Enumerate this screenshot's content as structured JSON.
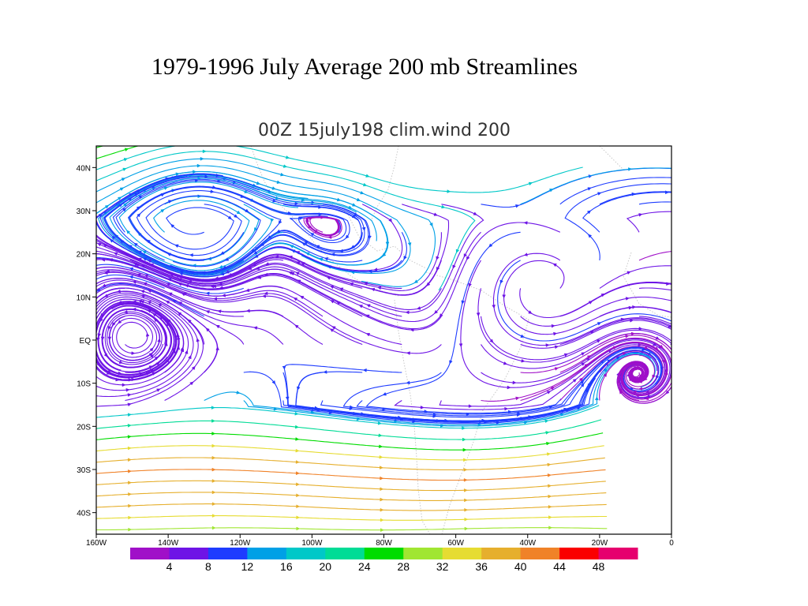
{
  "slide": {
    "title": "1979-1996 July Average 200 mb Streamlines"
  },
  "plot": {
    "title": "00Z 15july198 clim.wind 200",
    "lon_range": [
      -160,
      0
    ],
    "lat_range": [
      -45,
      45
    ],
    "lon_ticks": [
      {
        "value": -160,
        "label": "160W"
      },
      {
        "value": -140,
        "label": "140W"
      },
      {
        "value": -120,
        "label": "120W"
      },
      {
        "value": -100,
        "label": "100W"
      },
      {
        "value": -80,
        "label": "80W"
      },
      {
        "value": -60,
        "label": "60W"
      },
      {
        "value": -40,
        "label": "40W"
      },
      {
        "value": -20,
        "label": "20W"
      },
      {
        "value": 0,
        "label": "0"
      }
    ],
    "lat_ticks": [
      {
        "value": 40,
        "label": "40N"
      },
      {
        "value": 30,
        "label": "30N"
      },
      {
        "value": 20,
        "label": "20N"
      },
      {
        "value": 10,
        "label": "10N"
      },
      {
        "value": 0,
        "label": "EQ"
      },
      {
        "value": -10,
        "label": "10S"
      },
      {
        "value": -20,
        "label": "20S"
      },
      {
        "value": -30,
        "label": "30S"
      },
      {
        "value": -40,
        "label": "40S"
      }
    ]
  },
  "colorbar": {
    "colors": [
      "#a010c8",
      "#6e14e6",
      "#1e3cff",
      "#00a0e6",
      "#00c8c8",
      "#00dc96",
      "#00dc00",
      "#a0e632",
      "#e6dc32",
      "#e6af2d",
      "#f08228",
      "#fa0000",
      "#e6006e"
    ],
    "labels": [
      "4",
      "8",
      "12",
      "16",
      "20",
      "24",
      "28",
      "32",
      "36",
      "40",
      "44",
      "48"
    ]
  }
}
